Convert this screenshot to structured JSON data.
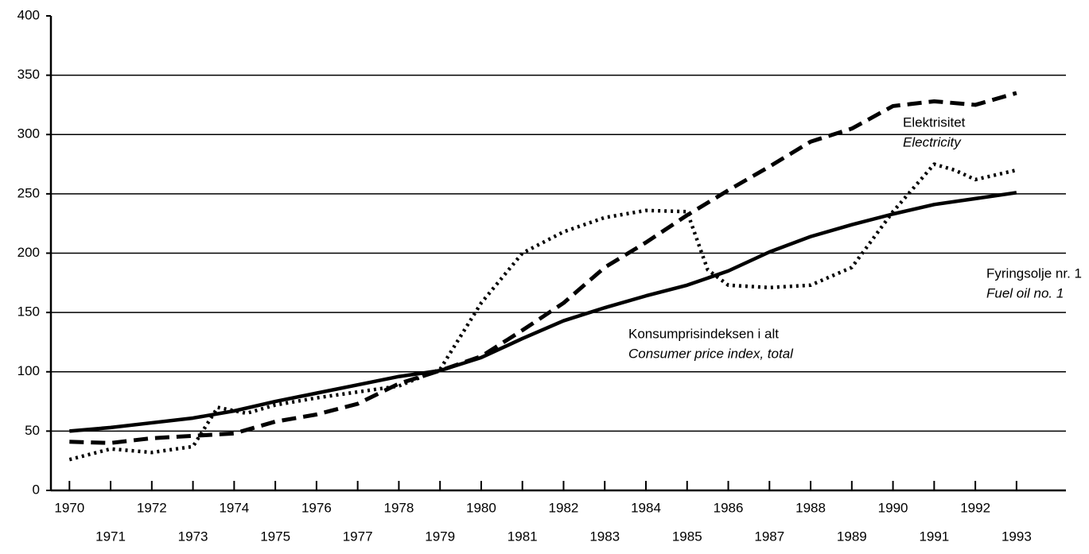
{
  "chart_data": {
    "type": "line",
    "x": [
      1970,
      1971,
      1972,
      1973,
      1974,
      1975,
      1976,
      1977,
      1978,
      1979,
      1980,
      1981,
      1982,
      1983,
      1984,
      1985,
      1986,
      1987,
      1988,
      1989,
      1990,
      1991,
      1992,
      1993
    ],
    "xlim": [
      1969.55,
      1994.2
    ],
    "xticks": [
      1970,
      1971,
      1972,
      1973,
      1974,
      1975,
      1976,
      1977,
      1978,
      1979,
      1980,
      1981,
      1982,
      1983,
      1984,
      1985,
      1986,
      1987,
      1988,
      1989,
      1990,
      1991,
      1992,
      1993
    ],
    "ylim": [
      0,
      400
    ],
    "yticks": [
      0,
      50,
      100,
      150,
      200,
      250,
      300,
      350,
      400
    ],
    "grid": true,
    "series": [
      {
        "name": "Konsumprisindeksen i alt",
        "name_en": "Consumer price index, total",
        "color": "#000000",
        "style": "solid",
        "values": [
          50,
          53,
          57,
          61,
          67,
          75,
          82,
          89,
          96,
          101,
          112,
          128,
          143,
          154,
          164,
          173,
          185,
          201,
          214,
          224,
          233,
          241,
          246,
          251
        ]
      },
      {
        "name": "Elektrisitet",
        "name_en": "Electricity",
        "color": "#000000",
        "style": "dashed",
        "values": [
          41,
          40,
          44,
          46,
          48,
          58,
          64,
          73,
          90,
          101,
          113,
          135,
          158,
          188,
          209,
          232,
          253,
          273,
          294,
          305,
          324,
          328,
          325,
          335
        ]
      },
      {
        "name": "Fyringsolje nr. 1",
        "name_en": "Fuel oil no. 1",
        "color": "#000000",
        "style": "dotted",
        "x": [
          1970,
          1971,
          1972,
          1973,
          1973.6,
          1974.3,
          1975,
          1976,
          1977,
          1978,
          1979,
          1979.5,
          1980,
          1981,
          1982,
          1983,
          1984,
          1985,
          1985.5,
          1986,
          1987,
          1988,
          1989,
          1990,
          1991,
          1991.5,
          1992,
          1993
        ],
        "values": [
          26,
          35,
          32,
          37,
          70,
          65,
          72,
          78,
          83,
          88,
          102,
          130,
          158,
          200,
          218,
          230,
          236,
          235,
          186,
          173,
          171,
          173,
          188,
          235,
          275,
          270,
          262,
          270
        ]
      }
    ]
  }
}
